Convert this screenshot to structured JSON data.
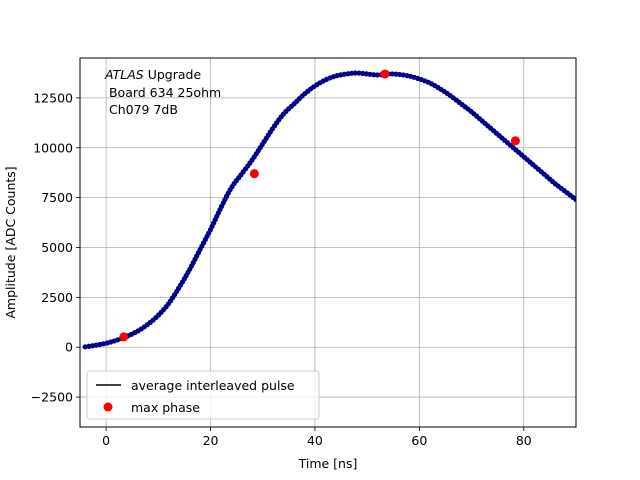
{
  "chart_data": {
    "type": "scatter",
    "xlabel": "Time [ns]",
    "ylabel": "Amplitude [ADC Counts]",
    "xlim": [
      -5,
      90
    ],
    "ylim": [
      -4000,
      14500
    ],
    "grid": true,
    "x_ticks": [
      0,
      20,
      40,
      60,
      80
    ],
    "y_ticks": [
      -2500,
      0,
      2500,
      5000,
      7500,
      10000,
      12500
    ],
    "annotation": {
      "experiment": "ATLAS",
      "experiment_suffix": " Upgrade",
      "line2": " Board 634 25ohm",
      "line3": " Ch079 7dB"
    },
    "legend": {
      "placement": "lower-left",
      "entries": [
        "average interleaved pulse",
        "max phase"
      ]
    },
    "colors": {
      "pulse_line": "#000000",
      "samples": "#00008b",
      "max_phase": "#ff0000",
      "grid": "#b0b0b0"
    },
    "series": [
      {
        "name": "average interleaved pulse",
        "x": [
          -4.0,
          -2.0,
          0.0,
          2.0,
          4.0,
          6.0,
          8.0,
          10.0,
          12.0,
          14.0,
          16.0,
          18.0,
          20.0,
          22.0,
          24.0,
          26.0,
          28.0,
          30.0,
          32.0,
          34.0,
          36.0,
          38.0,
          40.0,
          42.0,
          44.0,
          46.0,
          48.0,
          50.0,
          52.0,
          54.0,
          56.0,
          58.0,
          60.0,
          62.0,
          64.0,
          66.0,
          68.0,
          70.0,
          72.0,
          74.0,
          76.0,
          78.0,
          80.0,
          82.0,
          84.0,
          86.0,
          88.0,
          90.0
        ],
        "y": [
          20,
          100,
          200,
          350,
          550,
          800,
          1150,
          1600,
          2200,
          3000,
          3900,
          4900,
          5900,
          7000,
          8000,
          8700,
          9400,
          10200,
          11000,
          11700,
          12200,
          12700,
          13100,
          13400,
          13600,
          13700,
          13750,
          13700,
          13650,
          13700,
          13680,
          13600,
          13450,
          13250,
          12950,
          12600,
          12200,
          11800,
          11350,
          10900,
          10450,
          10000,
          9550,
          9100,
          8650,
          8200,
          7800,
          7400
        ]
      },
      {
        "name": "max phase",
        "x": [
          3.4,
          28.4,
          53.4,
          78.4
        ],
        "y": [
          520,
          8700,
          13700,
          10350
        ]
      }
    ]
  }
}
